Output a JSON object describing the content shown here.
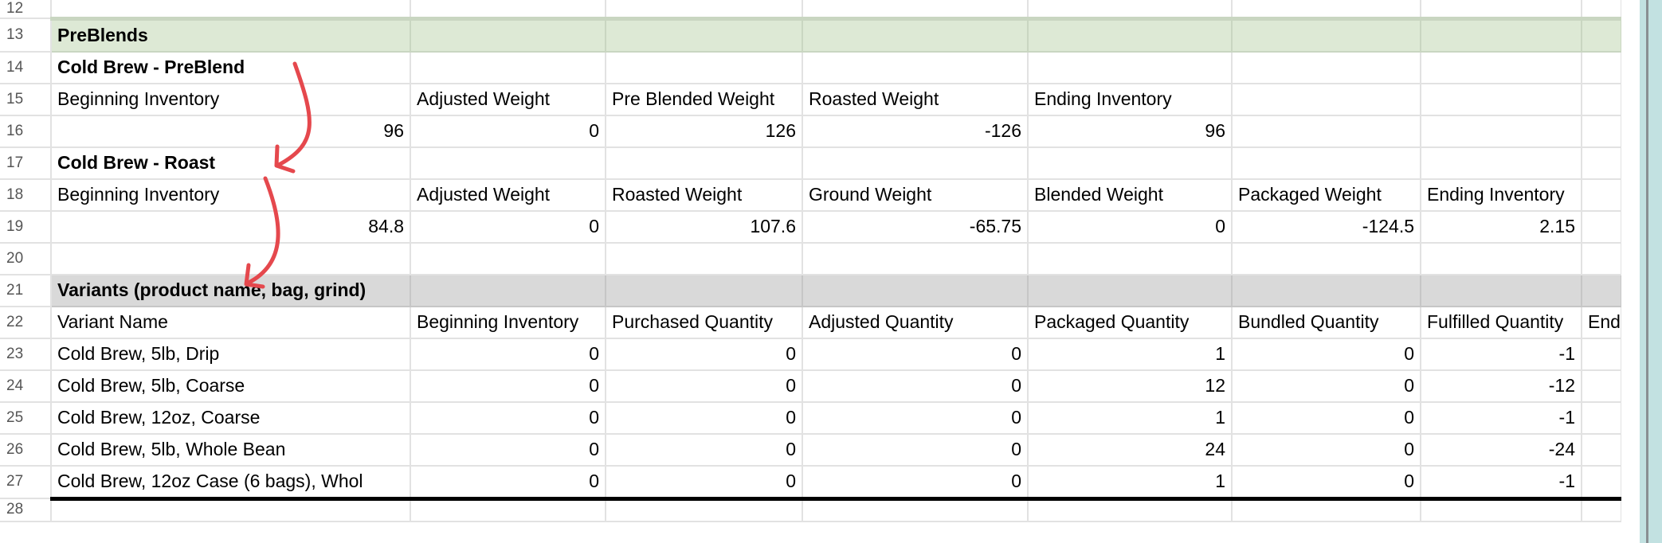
{
  "sheet": {
    "rows": [
      {
        "n": "12",
        "cls": "r12",
        "cells": [
          "",
          "",
          "",
          "",
          "",
          "",
          "",
          ""
        ]
      },
      {
        "n": "13",
        "cls": "green thick-top",
        "bold": [
          0
        ],
        "cells": [
          "PreBlends",
          "",
          "",
          "",
          "",
          "",
          "",
          ""
        ]
      },
      {
        "n": "14",
        "bold": [
          0
        ],
        "cells": [
          "Cold Brew - PreBlend",
          "",
          "",
          "",
          "",
          "",
          "",
          ""
        ]
      },
      {
        "n": "15",
        "cells": [
          "Beginning Inventory",
          "Adjusted Weight",
          "Pre Blended Weight",
          "Roasted Weight",
          "Ending Inventory",
          "",
          "",
          ""
        ]
      },
      {
        "n": "16",
        "num": [
          0,
          1,
          2,
          3,
          4
        ],
        "cells": [
          "96",
          "0",
          "126",
          "-126",
          "96",
          "",
          "",
          ""
        ]
      },
      {
        "n": "17",
        "bold": [
          0
        ],
        "cells": [
          "Cold Brew - Roast",
          "",
          "",
          "",
          "",
          "",
          "",
          ""
        ]
      },
      {
        "n": "18",
        "cells": [
          "Beginning Inventory",
          "Adjusted Weight",
          "Roasted Weight",
          "Ground Weight",
          "Blended Weight",
          "Packaged Weight",
          "Ending Inventory",
          ""
        ]
      },
      {
        "n": "19",
        "num": [
          0,
          1,
          2,
          3,
          4,
          5,
          6
        ],
        "cells": [
          "84.8",
          "0",
          "107.6",
          "-65.75",
          "0",
          "-124.5",
          "2.15",
          ""
        ]
      },
      {
        "n": "20",
        "cells": [
          "",
          "",
          "",
          "",
          "",
          "",
          "",
          ""
        ]
      },
      {
        "n": "21",
        "cls": "gray",
        "bold": [
          0
        ],
        "cells": [
          "Variants (product name, bag, grind)",
          "",
          "",
          "",
          "",
          "",
          "",
          ""
        ]
      },
      {
        "n": "22",
        "cells": [
          "Variant Name",
          "Beginning Inventory",
          "Purchased Quantity",
          "Adjusted Quantity",
          "Packaged Quantity",
          "Bundled Quantity",
          "Fulfilled Quantity",
          "End"
        ]
      },
      {
        "n": "23",
        "num": [
          1,
          2,
          3,
          4,
          5,
          6
        ],
        "cells": [
          "Cold Brew, 5lb, Drip",
          "0",
          "0",
          "0",
          "1",
          "0",
          "-1",
          ""
        ]
      },
      {
        "n": "24",
        "num": [
          1,
          2,
          3,
          4,
          5,
          6
        ],
        "cells": [
          "Cold Brew, 5lb, Coarse",
          "0",
          "0",
          "0",
          "12",
          "0",
          "-12",
          ""
        ]
      },
      {
        "n": "25",
        "num": [
          1,
          2,
          3,
          4,
          5,
          6
        ],
        "cells": [
          "Cold Brew, 12oz, Coarse",
          "0",
          "0",
          "0",
          "1",
          "0",
          "-1",
          ""
        ]
      },
      {
        "n": "26",
        "num": [
          1,
          2,
          3,
          4,
          5,
          6
        ],
        "cells": [
          "Cold Brew, 5lb, Whole Bean",
          "0",
          "0",
          "0",
          "24",
          "0",
          "-24",
          ""
        ]
      },
      {
        "n": "27",
        "cls": "thick-bottom",
        "num": [
          1,
          2,
          3,
          4,
          5,
          6
        ],
        "cells": [
          "Cold Brew, 12oz Case (6 bags), Whol",
          "0",
          "0",
          "0",
          "1",
          "0",
          "-1",
          ""
        ]
      },
      {
        "n": "28",
        "cls": "r28",
        "cells": [
          "",
          "",
          "",
          "",
          "",
          "",
          "",
          ""
        ]
      }
    ]
  },
  "colors": {
    "annotation_arrow": "#e5484d",
    "preblends_band": "#dde9d5",
    "variants_band": "#d9d9d9",
    "scrollbar": "#c2e1e1"
  },
  "icons": [
    "annotation-arrow-icon"
  ]
}
